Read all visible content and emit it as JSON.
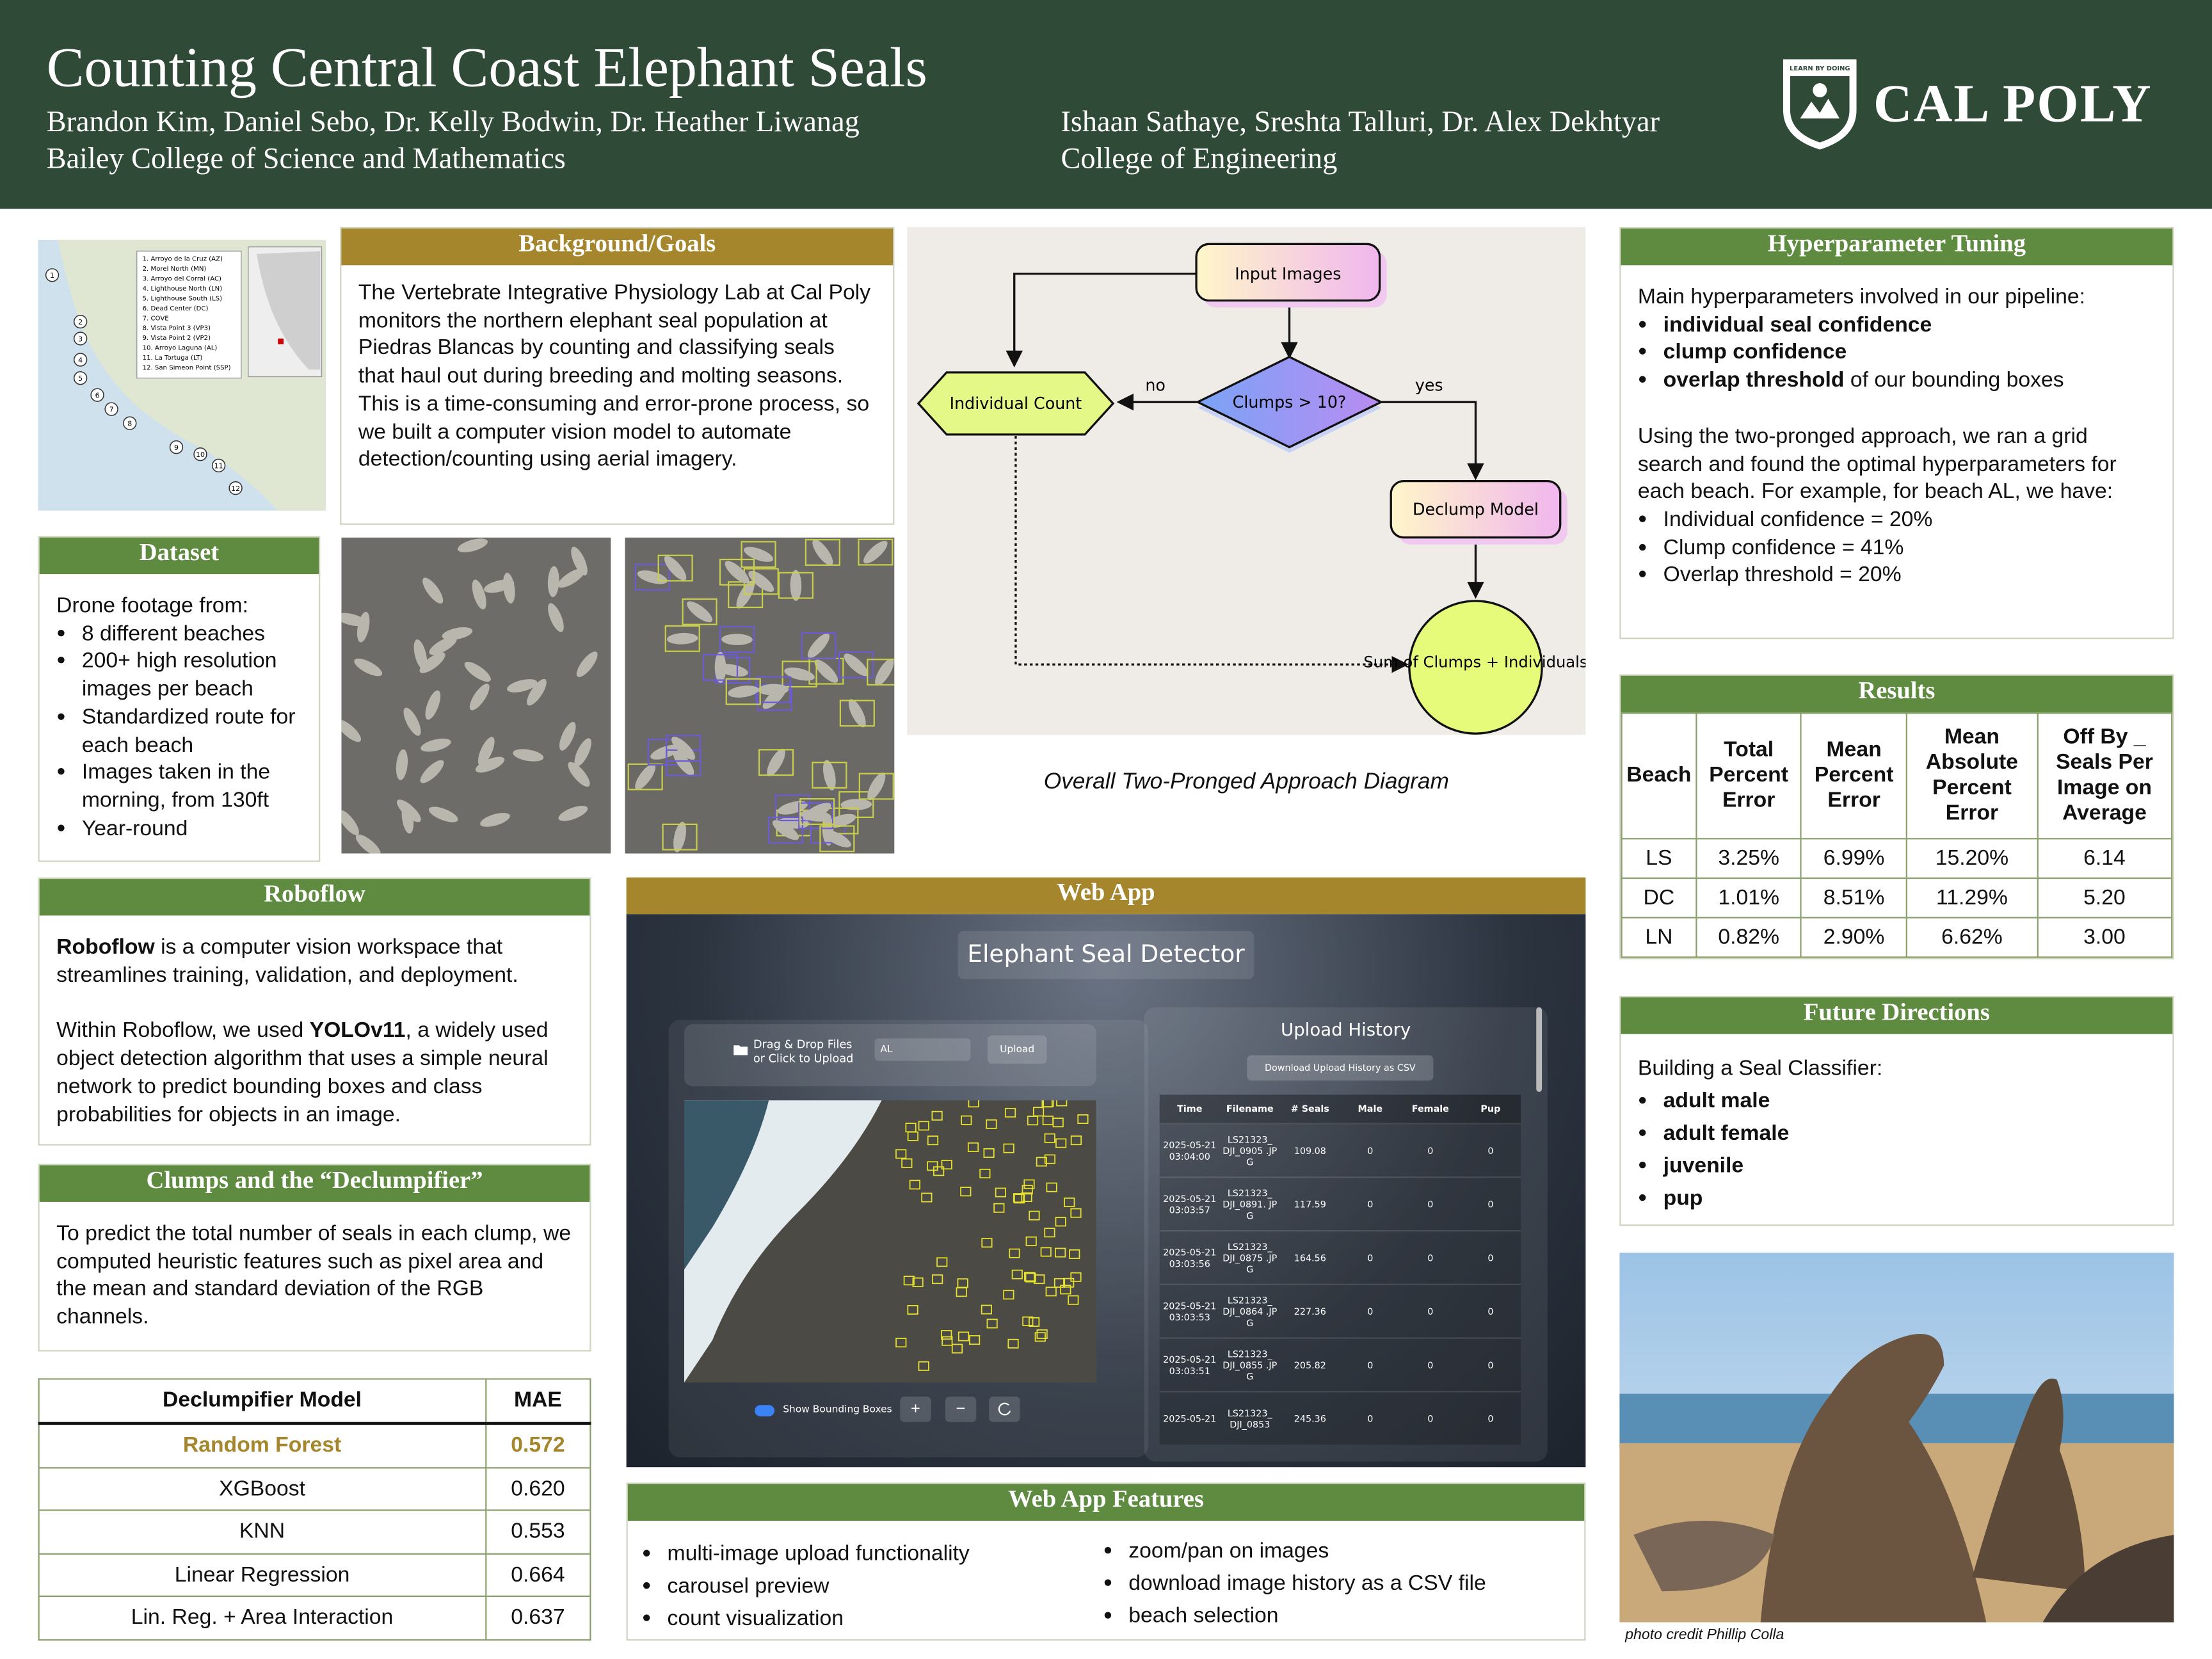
{
  "header": {
    "title": "Counting Central Coast Elephant Seals",
    "authors_left": "Brandon Kim, Daniel Sebo, Dr. Kelly Bodwin, Dr. Heather Liwanag",
    "affiliation_left": "Bailey College of Science and Mathematics",
    "authors_right": "Ishaan Sathaye, Sreshta Talluri, Dr. Alex Dekhtyar",
    "affiliation_right": "College of Engineering",
    "logo_tagline": "LEARN BY DOING",
    "logo_text": "CAL POLY"
  },
  "map": {
    "legend": [
      "1. Arroyo de la Cruz (AZ)",
      "2. Morel North (MN)",
      "3. Arroyo del Corral (AC)",
      "4. Lighthouse North (LN)",
      "5. Lighthouse South (LS)",
      "6. Dead Center (DC)",
      "7. COVE",
      "8. Vista Point 3 (VP3)",
      "9. Vista Point 2 (VP2)",
      "10. Arroyo Laguna (AL)",
      "11. La Tortuga (LT)",
      "12. San Simeon Point (SSP)"
    ],
    "markers": [
      "1",
      "2",
      "3",
      "4",
      "5",
      "6",
      "7",
      "8",
      "9",
      "10",
      "11",
      "12"
    ]
  },
  "background": {
    "heading": "Background/Goals",
    "text": "The Vertebrate Integrative Physiology Lab at Cal Poly monitors the northern elephant seal population at Piedras Blancas by counting and classifying seals that haul out during breeding and molting seasons. This is a time-consuming and error-prone process, so we built a computer vision model to automate detection/counting using aerial imagery."
  },
  "dataset": {
    "heading": "Dataset",
    "intro": "Drone footage from:",
    "bullets": [
      "8 different beaches",
      "200+ high resolution images per beach",
      "Standardized route for each beach",
      "Images taken in the morning, from 130ft",
      "Year-round"
    ]
  },
  "diagram": {
    "nodes": [
      "Input Images",
      "Clumps > 10?",
      "Individual Count",
      "Declump Model",
      "Sum of Clumps + Individuals"
    ],
    "edge_no": "no",
    "edge_yes": "yes",
    "caption": "Overall Two-Pronged Approach Diagram"
  },
  "hyperparameters": {
    "heading": "Hyperparameter Tuning",
    "intro": "Main hyperparameters involved in our pipeline:",
    "bullets": [
      [
        {
          "text": "individual seal confidence",
          "bold": true
        }
      ],
      [
        {
          "text": "clump confidence",
          "bold": true
        }
      ],
      [
        {
          "text": "overlap threshold",
          "bold": true
        },
        {
          "text": " of our bounding boxes"
        }
      ]
    ],
    "paragraph": "Using the two-pronged approach, we ran a grid search and found the optimal hyperparameters for each beach. For example, for beach AL, we have:",
    "example": [
      "Individual confidence = 20%",
      "Clump confidence = 41%",
      "Overlap threshold = 20%"
    ]
  },
  "results": {
    "heading": "Results",
    "columns": [
      "Beach",
      "Total Percent Error",
      "Mean Percent Error",
      "Mean Absolute Percent Error",
      "Off By _ Seals Per Image on Average"
    ],
    "rows": [
      [
        "LS",
        "3.25%",
        "6.99%",
        "15.20%",
        "6.14"
      ],
      [
        "DC",
        "1.01%",
        "8.51%",
        "11.29%",
        "5.20"
      ],
      [
        "LN",
        "0.82%",
        "2.90%",
        "6.62%",
        "3.00"
      ]
    ]
  },
  "future": {
    "heading": "Future Directions",
    "intro": "Building a Seal Classifier:",
    "bullets": [
      [
        {
          "text": "adult male",
          "bold": true
        }
      ],
      [
        {
          "text": "adult female",
          "bold": true
        }
      ],
      [
        {
          "text": "juvenile",
          "bold": true
        }
      ],
      [
        {
          "text": "pup",
          "bold": true
        }
      ]
    ]
  },
  "photo_credit": "photo credit Phillip Colla",
  "roboflow": {
    "heading": "Roboflow",
    "paragraphs": [
      [
        {
          "text": "Roboflow",
          "bold": true
        },
        {
          "text": " is a computer vision workspace that streamlines training, validation, and deployment."
        }
      ],
      [
        {
          "text": "Within Roboflow, we used "
        },
        {
          "text": "YOLOv11",
          "bold": true
        },
        {
          "text": ", a widely used object detection algorithm that uses a simple neural network to predict bounding boxes and class probabilities for objects in an image."
        }
      ]
    ]
  },
  "clumps": {
    "heading": "Clumps and the “Declumpifier”",
    "text": "To predict the total number of seals in each clump, we computed heuristic features such as pixel area and the mean and standard deviation of the RGB channels."
  },
  "declump_table": {
    "columns": [
      "Declumpifier Model",
      "MAE"
    ],
    "rows": [
      [
        "Random Forest",
        "0.572"
      ],
      [
        "XGBoost",
        "0.620"
      ],
      [
        "KNN",
        "0.553"
      ],
      [
        "Linear Regression",
        "0.664"
      ],
      [
        "Lin. Reg. + Area Interaction",
        "0.637"
      ]
    ]
  },
  "webapp": {
    "heading": "Web App",
    "app_title": "Elephant Seal Detector",
    "drop_text": "Drag & Drop Files or Click to Upload",
    "beach_select": "AL",
    "upload_button": "Upload",
    "history_title": "Upload History",
    "download_button": "Download Upload History as CSV",
    "history_columns": [
      "Time",
      "Filename",
      "# Seals",
      "Male",
      "Female",
      "Pup"
    ],
    "history_rows": [
      [
        "2025-05-21 03:04:00",
        "LS21323_ DJI_0905 .JPG",
        "109.08",
        "0",
        "0",
        "0"
      ],
      [
        "2025-05-21 03:03:57",
        "LS21323_ DJI_0891. JPG",
        "117.59",
        "0",
        "0",
        "0"
      ],
      [
        "2025-05-21 03:03:56",
        "LS21323_ DJI_0875 .JPG",
        "164.56",
        "0",
        "0",
        "0"
      ],
      [
        "2025-05-21 03:03:53",
        "LS21323_ DJI_0864 .JPG",
        "227.36",
        "0",
        "0",
        "0"
      ],
      [
        "2025-05-21 03:03:51",
        "LS21323_ DJI_0855 .JPG",
        "205.82",
        "0",
        "0",
        "0"
      ],
      [
        "2025-05-21",
        "LS21323_ DJI_0853",
        "245.36",
        "0",
        "0",
        "0"
      ]
    ],
    "toggle_label": "Show Bounding Boxes",
    "zoom_in": "+",
    "zoom_out": "−"
  },
  "features": {
    "heading": "Web App Features",
    "left": [
      "multi-image upload functionality",
      "carousel preview",
      "count visualization"
    ],
    "right": [
      "zoom/pan on images",
      "download image history as a CSV file",
      "beach selection"
    ]
  }
}
